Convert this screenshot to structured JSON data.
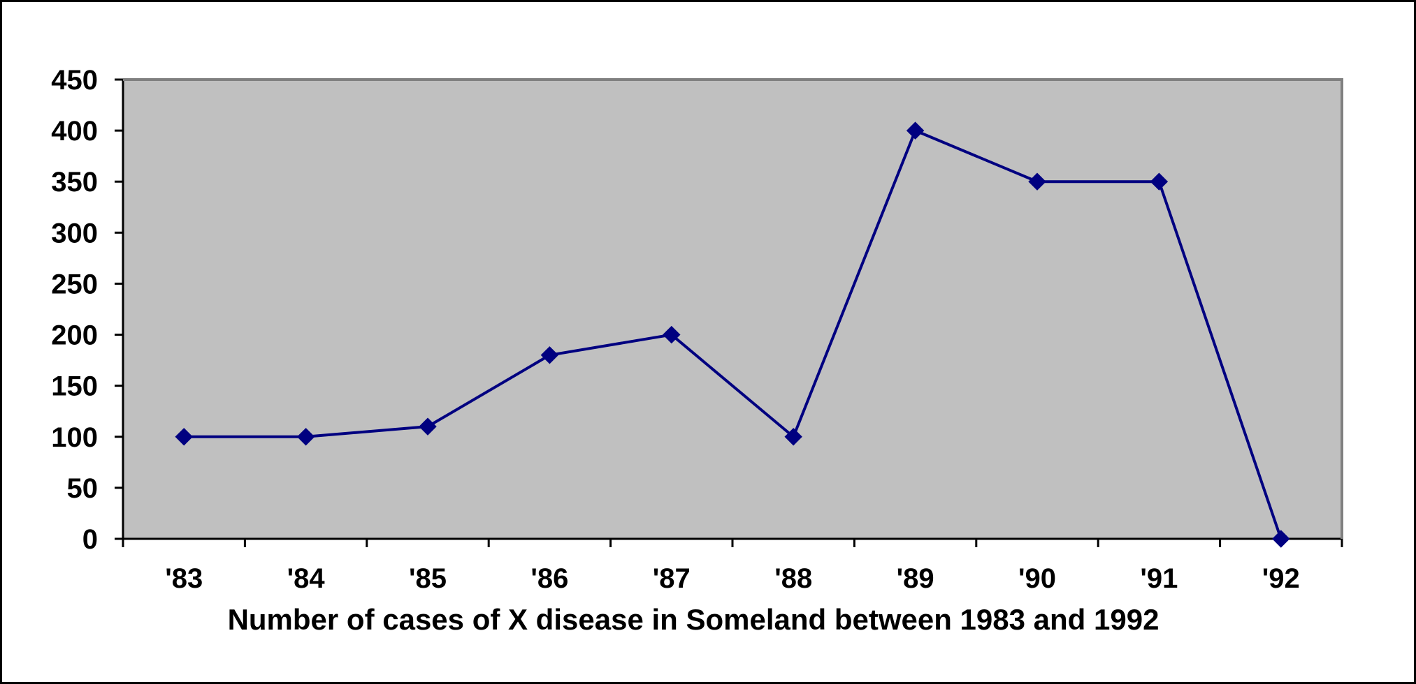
{
  "chart_data": {
    "type": "line",
    "title": "",
    "xlabel": "Number of cases of X disease in Someland between 1983 and 1992",
    "ylabel": "",
    "categories": [
      "'83",
      "'84",
      "'85",
      "'86",
      "'87",
      "'88",
      "'89",
      "'90",
      "'91",
      "'92"
    ],
    "series": [
      {
        "values": [
          100,
          100,
          110,
          180,
          200,
          100,
          400,
          350,
          350,
          0
        ]
      }
    ],
    "ylim": [
      0,
      450
    ],
    "yticks": [
      0,
      50,
      100,
      150,
      200,
      250,
      300,
      350,
      400,
      450
    ],
    "ytick_labels": [
      "0",
      "50",
      "100",
      "150",
      "200",
      "250",
      "300",
      "350",
      "400",
      "450"
    ],
    "grid": false,
    "legend": "none",
    "marker": "diamond",
    "colors": {
      "line": "#000080",
      "marker": "#000080",
      "plot_background": "#c0c0c0",
      "page_background": "#ffffff",
      "plot_border": "#808080",
      "axis": "#000000"
    }
  }
}
